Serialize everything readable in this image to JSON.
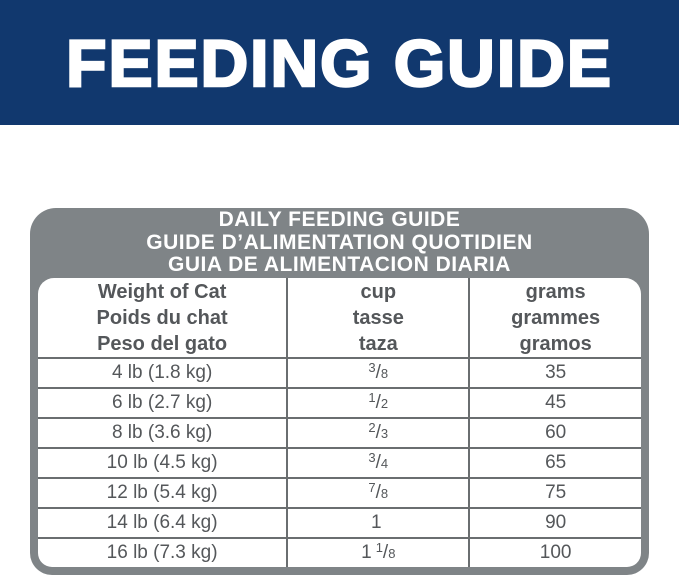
{
  "colors": {
    "banner_blue": "#11386e",
    "card_gray": "#7f8487",
    "line_gray": "#6a6e70",
    "table_text_gray": "#54575a",
    "title_text_white": "#ffffff"
  },
  "banner": {
    "title": "FEEDING GUIDE"
  },
  "card": {
    "title_lines": [
      "DAILY FEEDING GUIDE",
      "GUIDE D’ALIMENTATION QUOTIDIEN",
      "GUIA DE ALIMENTACION DIARIA"
    ],
    "columns": [
      {
        "id": "weight",
        "lines": [
          "Weight of Cat",
          "Poids du chat",
          "Peso del gato"
        ]
      },
      {
        "id": "cup",
        "lines": [
          "cup",
          "tasse",
          "taza"
        ]
      },
      {
        "id": "grams",
        "lines": [
          "grams",
          "grammes",
          "gramos"
        ]
      }
    ],
    "fraction_slash": "/",
    "rows": [
      {
        "weight": "4 lb (1.8 kg)",
        "cup": {
          "whole": "",
          "num": "3",
          "den": "8"
        },
        "grams": "35"
      },
      {
        "weight": "6 lb (2.7 kg)",
        "cup": {
          "whole": "",
          "num": "1",
          "den": "2"
        },
        "grams": "45"
      },
      {
        "weight": "8 lb (3.6 kg)",
        "cup": {
          "whole": "",
          "num": "2",
          "den": "3"
        },
        "grams": "60"
      },
      {
        "weight": "10 lb (4.5 kg)",
        "cup": {
          "whole": "",
          "num": "3",
          "den": "4"
        },
        "grams": "65"
      },
      {
        "weight": "12 lb (5.4 kg)",
        "cup": {
          "whole": "",
          "num": "7",
          "den": "8"
        },
        "grams": "75"
      },
      {
        "weight": "14 lb (6.4 kg)",
        "cup": {
          "whole": "1",
          "num": "",
          "den": ""
        },
        "grams": "90"
      },
      {
        "weight": "16 lb (7.3 kg)",
        "cup": {
          "whole": "1",
          "num": "1",
          "den": "8"
        },
        "grams": "100"
      }
    ]
  }
}
